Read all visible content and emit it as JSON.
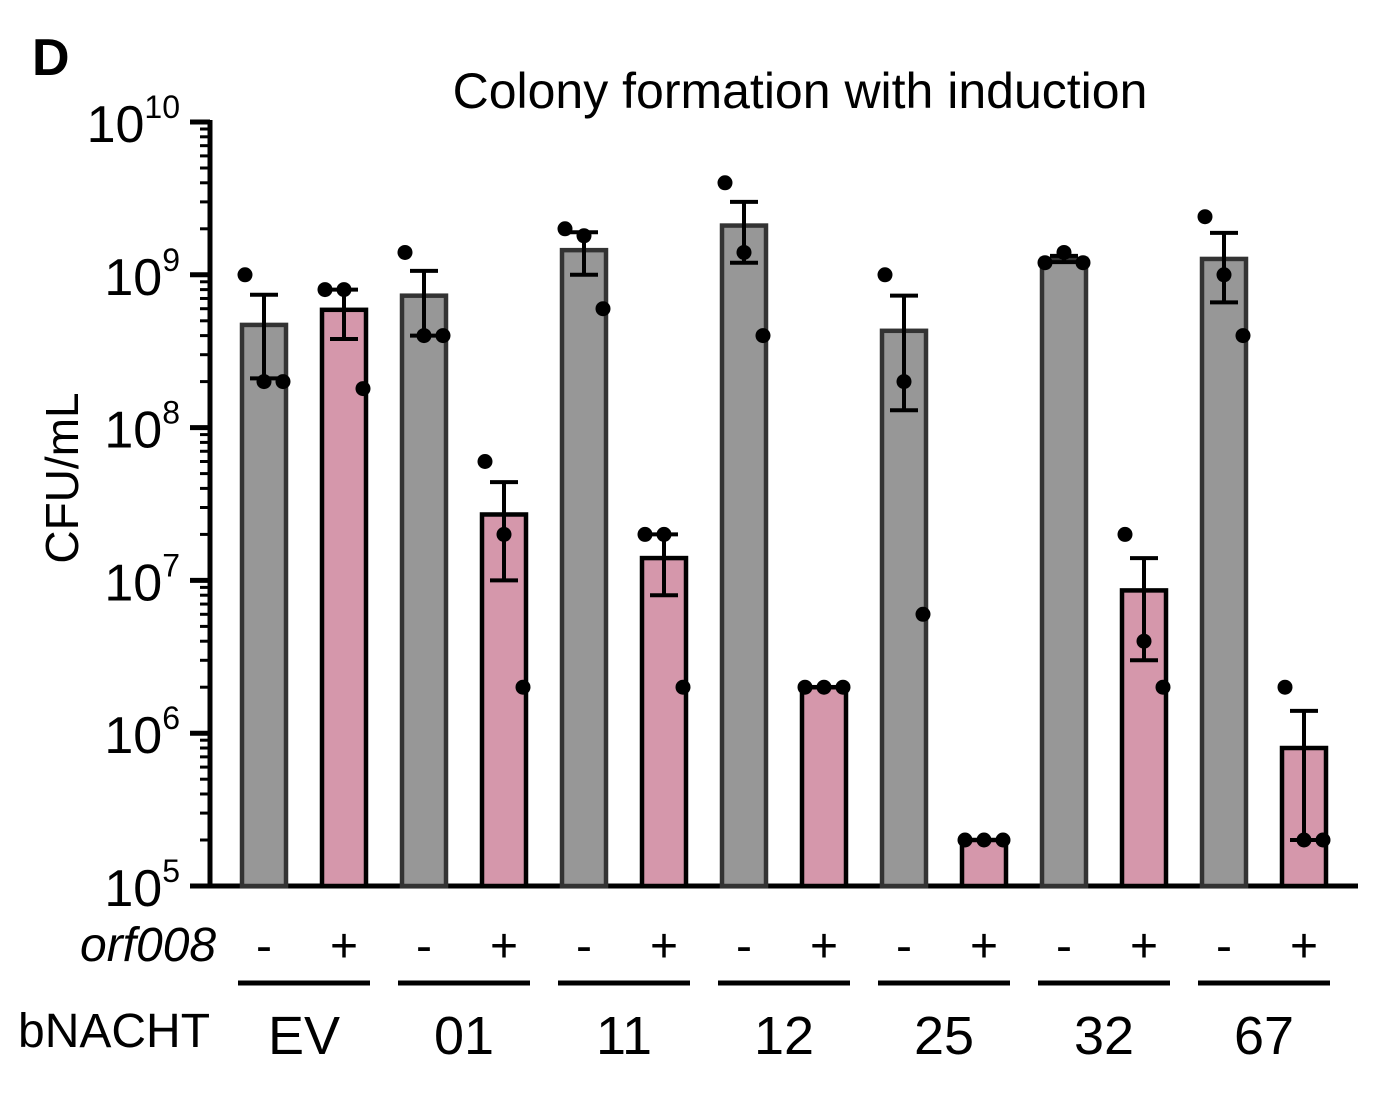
{
  "panel_letter": "D",
  "chart_data": {
    "type": "bar",
    "title": "Colony formation with induction",
    "xlabel": "",
    "ylabel": "CFU/mL",
    "yscale": "log",
    "ylim": [
      100000,
      10000000000
    ],
    "yticks": [
      {
        "base": "10",
        "exp": "5",
        "value": 100000
      },
      {
        "base": "10",
        "exp": "6",
        "value": 1000000
      },
      {
        "base": "10",
        "exp": "7",
        "value": 10000000
      },
      {
        "base": "10",
        "exp": "8",
        "value": 100000000
      },
      {
        "base": "10",
        "exp": "9",
        "value": 1000000000
      },
      {
        "base": "10",
        "exp": "10",
        "value": 10000000000
      }
    ],
    "row_labels": {
      "orf008": "orf008",
      "bnacht": "bNACHT"
    },
    "colors": {
      "minus": "#979797",
      "plus": "#d597ab",
      "outline": "#000000"
    },
    "groups": [
      {
        "label": "EV",
        "bars": [
          {
            "sign": "-",
            "mean": 470000000,
            "err_low": 210000000,
            "err_high": 740000000,
            "points": [
              1000000000,
              200000000,
              200000000
            ]
          },
          {
            "sign": "+",
            "mean": 590000000,
            "err_low": 380000000,
            "err_high": 800000000,
            "points": [
              800000000,
              800000000,
              180000000
            ]
          }
        ]
      },
      {
        "label": "01",
        "bars": [
          {
            "sign": "-",
            "mean": 730000000,
            "err_low": 400000000,
            "err_high": 1060000000,
            "points": [
              1400000000,
              400000000,
              400000000
            ]
          },
          {
            "sign": "+",
            "mean": 27000000,
            "err_low": 10000000,
            "err_high": 44000000,
            "points": [
              60000000,
              20000000,
              2000000
            ]
          }
        ]
      },
      {
        "label": "11",
        "bars": [
          {
            "sign": "-",
            "mean": 1450000000,
            "err_low": 1000000000,
            "err_high": 1900000000,
            "points": [
              2000000000,
              1800000000,
              600000000
            ]
          },
          {
            "sign": "+",
            "mean": 14000000,
            "err_low": 8000000,
            "err_high": 20000000,
            "points": [
              20000000,
              20000000,
              2000000
            ]
          }
        ]
      },
      {
        "label": "12",
        "bars": [
          {
            "sign": "-",
            "mean": 2100000000,
            "err_low": 1200000000,
            "err_high": 3000000000,
            "points": [
              4000000000,
              1400000000,
              400000000
            ]
          },
          {
            "sign": "+",
            "mean": 2000000,
            "err_low": 2000000,
            "err_high": 2000000,
            "points": [
              2000000,
              2000000,
              2000000
            ]
          }
        ]
      },
      {
        "label": "25",
        "bars": [
          {
            "sign": "-",
            "mean": 430000000,
            "err_low": 130000000,
            "err_high": 730000000,
            "points": [
              1000000000,
              200000000,
              6000000
            ]
          },
          {
            "sign": "+",
            "mean": 200000,
            "err_low": 200000,
            "err_high": 200000,
            "points": [
              200000,
              200000,
              200000
            ]
          }
        ]
      },
      {
        "label": "32",
        "bars": [
          {
            "sign": "-",
            "mean": 1270000000,
            "err_low": 1210000000,
            "err_high": 1330000000,
            "points": [
              1200000000,
              1400000000,
              1200000000
            ]
          },
          {
            "sign": "+",
            "mean": 8600000,
            "err_low": 3000000,
            "err_high": 14000000,
            "points": [
              20000000,
              4000000,
              2000000
            ]
          }
        ]
      },
      {
        "label": "67",
        "bars": [
          {
            "sign": "-",
            "mean": 1270000000,
            "err_low": 660000000,
            "err_high": 1880000000,
            "points": [
              2400000000,
              1000000000,
              400000000
            ]
          },
          {
            "sign": "+",
            "mean": 800000,
            "err_low": 200000,
            "err_high": 1400000,
            "points": [
              2000000,
              200000,
              200000
            ]
          }
        ]
      }
    ]
  }
}
